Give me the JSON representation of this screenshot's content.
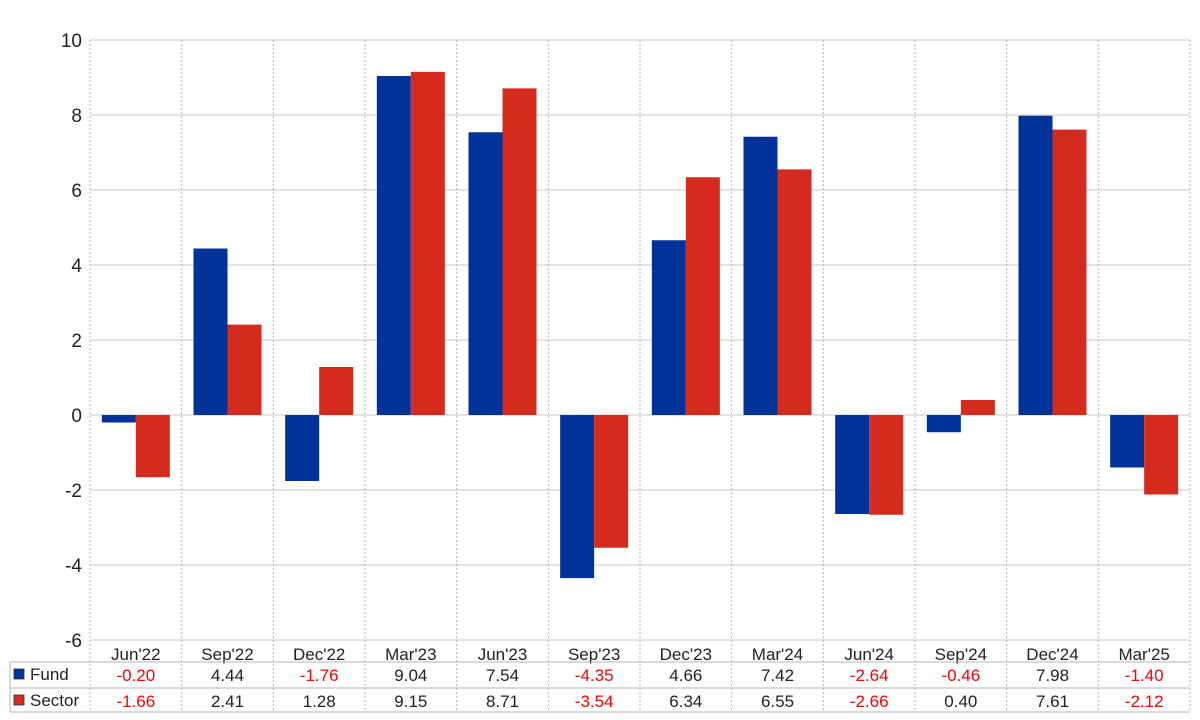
{
  "chart_data": {
    "type": "bar",
    "categories": [
      "Jun'22",
      "Sep'22",
      "Dec'22",
      "Mar'23",
      "Jun'23",
      "Sep'23",
      "Dec'23",
      "Mar'24",
      "Jun'24",
      "Sep'24",
      "Dec'24",
      "Mar'25"
    ],
    "series": [
      {
        "name": "Fund",
        "color": "#003399",
        "values": [
          -0.2,
          4.44,
          -1.76,
          9.04,
          7.54,
          -4.35,
          4.66,
          7.42,
          -2.64,
          -0.46,
          7.98,
          -1.4
        ],
        "labels": [
          "-0.20",
          "4.44",
          "-1.76",
          "9.04",
          "7.54",
          "-4.35",
          "4.66",
          "7.42",
          "-2.64",
          "-0.46",
          "7.98",
          "-1.40"
        ]
      },
      {
        "name": "Sector",
        "color": "#d52b1e",
        "values": [
          -1.66,
          2.41,
          1.28,
          9.15,
          8.71,
          -3.54,
          6.34,
          6.55,
          -2.66,
          0.4,
          7.61,
          -2.12
        ],
        "labels": [
          "-1.66",
          "2.41",
          "1.28",
          "9.15",
          "8.71",
          "-3.54",
          "6.34",
          "6.55",
          "-2.66",
          "0.40",
          "7.61",
          "-2.12"
        ]
      }
    ],
    "ylim": [
      -6,
      10
    ],
    "yticks": [
      -6,
      -4,
      -2,
      0,
      2,
      4,
      6,
      8,
      10
    ],
    "ytick_labels": [
      "-6",
      "-4",
      "-2",
      "0",
      "2",
      "4",
      "6",
      "8",
      "10"
    ],
    "grid": true,
    "negative_label_color": "#ff0000",
    "positive_label_color": "#222222",
    "legend_placement": "data-table-left",
    "title": "",
    "xlabel": "",
    "ylabel": ""
  }
}
